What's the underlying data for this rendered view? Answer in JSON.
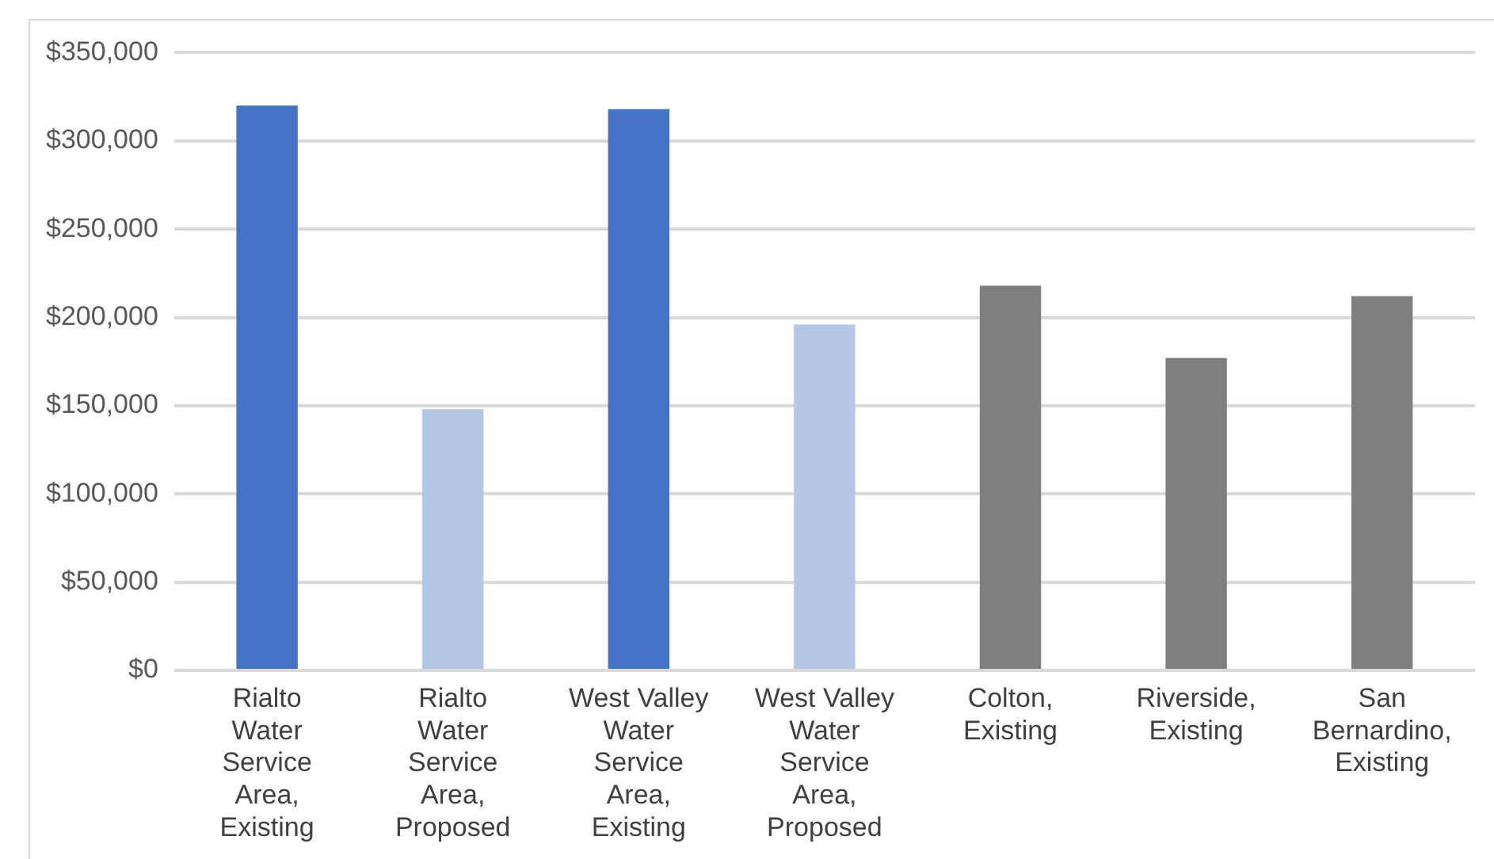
{
  "chart_data": {
    "type": "bar",
    "categories": [
      "Rialto Water Service Area, Existing",
      "Rialto Water Service Area, Proposed",
      "West Valley Water Service Area, Existing",
      "West Valley Water Service Area, Proposed",
      "Colton, Existing",
      "Riverside, Existing",
      "San Bernardino, Existing"
    ],
    "values": [
      320000,
      148000,
      318000,
      196000,
      218000,
      177000,
      212000
    ],
    "colors": [
      "#4472c4",
      "#b4c7e7",
      "#4472c4",
      "#b4c7e7",
      "#7f7f7f",
      "#7f7f7f",
      "#7f7f7f"
    ],
    "ylim": [
      0,
      350000
    ],
    "yticks": [
      {
        "value": 0,
        "label": "$0"
      },
      {
        "value": 50000,
        "label": "$50,000"
      },
      {
        "value": 100000,
        "label": "$100,000"
      },
      {
        "value": 150000,
        "label": "$150,000"
      },
      {
        "value": 200000,
        "label": "$200,000"
      },
      {
        "value": 250000,
        "label": "$250,000"
      },
      {
        "value": 300000,
        "label": "$300,000"
      },
      {
        "value": 350000,
        "label": "$350,000"
      }
    ],
    "grid": "y",
    "legend": false
  }
}
